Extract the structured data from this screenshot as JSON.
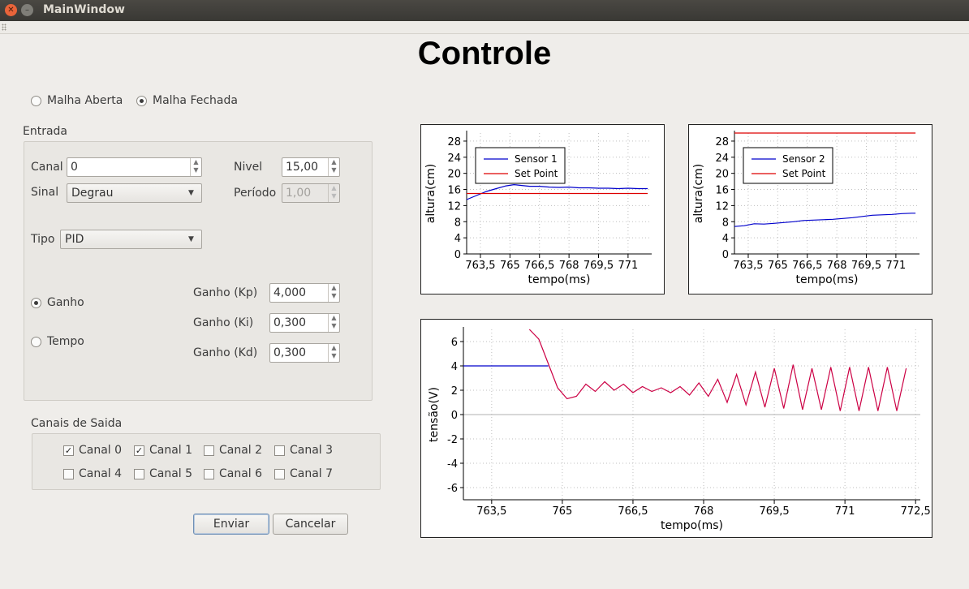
{
  "window": {
    "title": "MainWindow"
  },
  "heading": "Controle",
  "mode": {
    "open_loop": "Malha Aberta",
    "closed_loop": "Malha Fechada",
    "selected": "Malha Fechada"
  },
  "entrada": {
    "title": "Entrada",
    "canal_label": "Canal",
    "canal_value": "0",
    "sinal_label": "Sinal",
    "sinal_value": "Degrau",
    "nivel_label": "Nivel",
    "nivel_value": "15,00",
    "periodo_label": "Período",
    "periodo_value": "1,00",
    "tipo_label": "Tipo",
    "tipo_value": "PID",
    "ganho_radio": "Ganho",
    "tempo_radio": "Tempo",
    "selected": "Ganho",
    "kp_label": "Ganho (Kp)",
    "kp_value": "4,000",
    "ki_label": "Ganho (Ki)",
    "ki_value": "0,300",
    "kd_label": "Ganho (Kd)",
    "kd_value": "0,300"
  },
  "saida": {
    "title": "Canais de Saida",
    "channels": [
      {
        "label": "Canal 0",
        "checked": true
      },
      {
        "label": "Canal 1",
        "checked": true
      },
      {
        "label": "Canal 2",
        "checked": false
      },
      {
        "label": "Canal 3",
        "checked": false
      },
      {
        "label": "Canal 4",
        "checked": false
      },
      {
        "label": "Canal 5",
        "checked": false
      },
      {
        "label": "Canal 6",
        "checked": false
      },
      {
        "label": "Canal 7",
        "checked": false
      }
    ]
  },
  "buttons": {
    "send": "Enviar",
    "cancel": "Cancelar"
  },
  "colors": {
    "sensor": "#0000cc",
    "setpoint": "#dd0000",
    "voltage_a": "#0000cc",
    "voltage_b": "#cc0044"
  },
  "chart_data": [
    {
      "type": "line",
      "xlabel": "tempo(ms)",
      "ylabel": "altura(cm)",
      "xlim": [
        762.8,
        772.2
      ],
      "ylim": [
        0,
        30
      ],
      "xticks": [
        "763,5",
        "765",
        "766,5",
        "768",
        "769,5",
        "771"
      ],
      "yticks": [
        "0",
        "4",
        "8",
        "12",
        "16",
        "20",
        "24",
        "28"
      ],
      "legend_position": "top-left",
      "series": [
        {
          "name": "Sensor 1",
          "color": "#0000cc",
          "x": [
            762.8,
            763.3,
            763.8,
            764.3,
            764.8,
            765.2,
            765.6,
            766.0,
            766.5,
            767,
            767.5,
            768,
            768.5,
            769,
            769.5,
            770,
            770.5,
            771,
            771.5,
            772.0
          ],
          "y": [
            13.5,
            14.5,
            15.5,
            16.2,
            16.9,
            17.2,
            17.0,
            16.8,
            16.8,
            16.6,
            16.5,
            16.6,
            16.4,
            16.4,
            16.3,
            16.3,
            16.2,
            16.3,
            16.2,
            16.2
          ]
        },
        {
          "name": "Set Point",
          "color": "#dd0000",
          "x": [
            762.8,
            772.0
          ],
          "y": [
            15,
            15
          ]
        }
      ]
    },
    {
      "type": "line",
      "xlabel": "tempo(ms)",
      "ylabel": "altura(cm)",
      "xlim": [
        762.8,
        772.2
      ],
      "ylim": [
        0,
        30
      ],
      "xticks": [
        "763,5",
        "765",
        "766,5",
        "768",
        "769,5",
        "771"
      ],
      "yticks": [
        "0",
        "4",
        "8",
        "12",
        "16",
        "20",
        "24",
        "28"
      ],
      "legend_position": "top-left",
      "series": [
        {
          "name": "Sensor 2",
          "color": "#0000cc",
          "x": [
            762.8,
            763.3,
            763.8,
            764.3,
            764.8,
            765.3,
            765.8,
            766.3,
            766.8,
            767.3,
            767.8,
            768.3,
            768.8,
            769.3,
            769.8,
            770.3,
            770.8,
            771.3,
            771.8,
            772.0
          ],
          "y": [
            6.8,
            7.0,
            7.5,
            7.4,
            7.6,
            7.8,
            8.0,
            8.3,
            8.4,
            8.5,
            8.6,
            8.8,
            9.0,
            9.3,
            9.6,
            9.7,
            9.8,
            10.0,
            10.1,
            10.1
          ]
        },
        {
          "name": "Set Point",
          "color": "#dd0000",
          "x": [
            762.8,
            772.0
          ],
          "y": [
            30,
            30
          ]
        }
      ]
    },
    {
      "type": "line",
      "xlabel": "tempo(ms)",
      "ylabel": "tensão(V)",
      "xlim": [
        762.9,
        772.6
      ],
      "ylim": [
        -7,
        7
      ],
      "xticks": [
        "763,5",
        "765",
        "766,5",
        "768",
        "769,5",
        "771",
        "772,5"
      ],
      "yticks": [
        "-6",
        "-4",
        "-2",
        "0",
        "2",
        "4",
        "6"
      ],
      "series": [
        {
          "name": "",
          "color": "#0000cc",
          "x": [
            762.9,
            764.7
          ],
          "y": [
            4,
            4
          ]
        },
        {
          "name": "",
          "color": "#cc0044",
          "x": [
            764.3,
            764.5,
            764.7,
            764.9,
            765.1,
            765.3,
            765.5,
            765.7,
            765.9,
            766.1,
            766.3,
            766.5,
            766.7,
            766.9,
            767.1,
            767.3,
            767.5,
            767.7,
            767.9,
            768.1,
            768.3,
            768.5,
            768.7,
            768.9,
            769.1,
            769.3,
            769.5,
            769.7,
            769.9,
            770.1,
            770.3,
            770.5,
            770.7,
            770.9,
            771.1,
            771.3,
            771.5,
            771.7,
            771.9,
            772.1,
            772.3
          ],
          "y": [
            7,
            6.2,
            4.2,
            2.2,
            1.3,
            1.5,
            2.5,
            1.9,
            2.7,
            2.0,
            2.5,
            1.8,
            2.3,
            1.9,
            2.2,
            1.8,
            2.3,
            1.6,
            2.6,
            1.5,
            2.9,
            1.0,
            3.3,
            0.8,
            3.5,
            0.6,
            3.8,
            0.5,
            4.1,
            0.4,
            3.8,
            0.4,
            3.9,
            0.3,
            3.9,
            0.3,
            3.9,
            0.3,
            3.9,
            0.3,
            3.8
          ]
        }
      ]
    }
  ]
}
